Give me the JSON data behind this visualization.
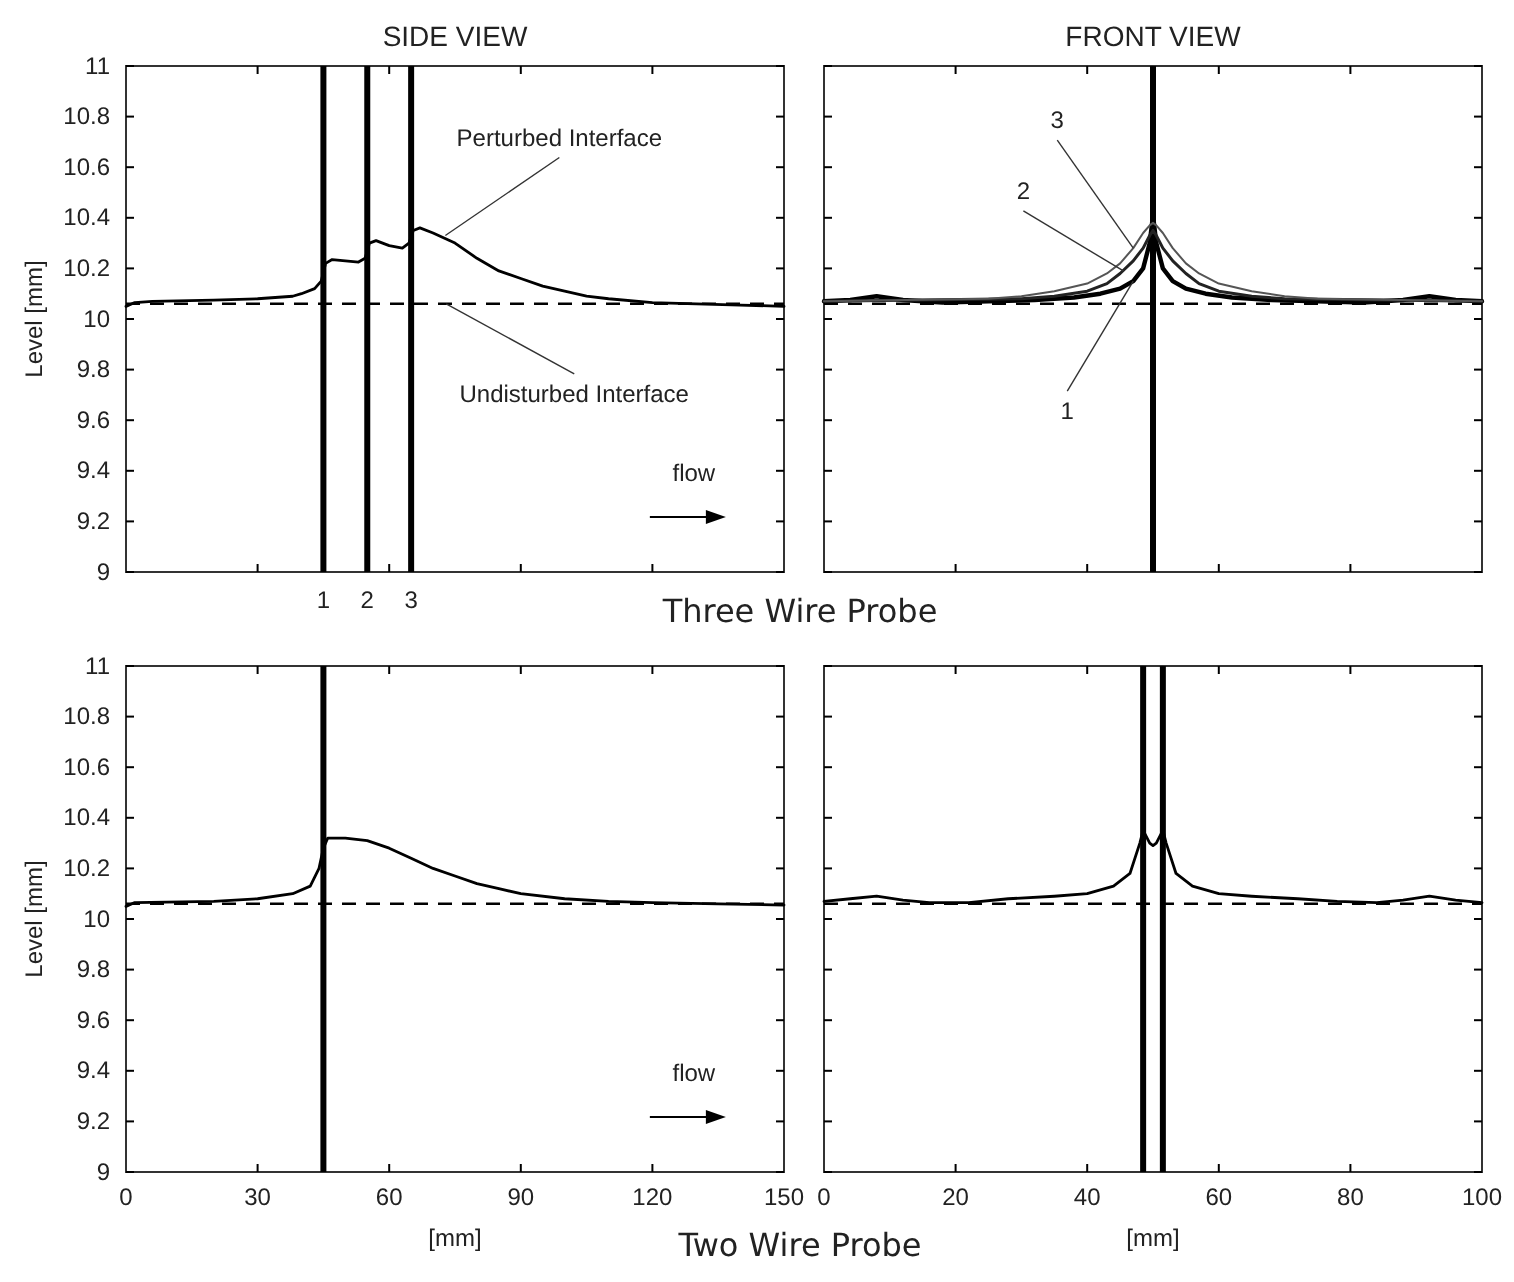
{
  "chart_data": [
    {
      "type": "line",
      "title": "SIDE VIEW",
      "ylabel": "Level [mm]",
      "xlim": [
        0,
        150
      ],
      "xticks": [
        0,
        30,
        60,
        90,
        120,
        150
      ],
      "ylim": [
        9,
        11
      ],
      "yticks": [
        9,
        9.2,
        9.4,
        9.6,
        9.8,
        10,
        10.2,
        10.4,
        10.6,
        10.8,
        11
      ],
      "tick_labels": "y",
      "series": [
        {
          "color": "#000000",
          "x": [
            0,
            2,
            6,
            20,
            30,
            38,
            40,
            43,
            44.5,
            45.5,
            47,
            50,
            53,
            54.5,
            55.5,
            57,
            60,
            63,
            64.5,
            65.5,
            67,
            70,
            75,
            80,
            85,
            90,
            95,
            100,
            105,
            110,
            120,
            130,
            140,
            150
          ],
          "values": [
            10.05,
            10.065,
            10.07,
            10.075,
            10.08,
            10.09,
            10.1,
            10.12,
            10.15,
            10.22,
            10.235,
            10.23,
            10.225,
            10.24,
            10.3,
            10.31,
            10.29,
            10.28,
            10.3,
            10.35,
            10.36,
            10.34,
            10.3,
            10.24,
            10.19,
            10.16,
            10.13,
            10.11,
            10.09,
            10.08,
            10.065,
            10.06,
            10.055,
            10.05
          ]
        }
      ],
      "ref_lines": [
        {
          "axis": "y",
          "value": 10.06,
          "color": "#000000",
          "line_style": "dashed"
        },
        {
          "axis": "x",
          "value": 45,
          "color": "#000000",
          "line_style": "solid"
        },
        {
          "axis": "x",
          "value": 55,
          "color": "#000000",
          "line_style": "solid"
        },
        {
          "axis": "x",
          "value": 65,
          "color": "#000000",
          "line_style": "solid"
        }
      ],
      "annotations": [
        {
          "text": "Perturbed Interface",
          "x": 72.8,
          "y": 10.33
        },
        {
          "text": "Undisturbed Interface",
          "x": 73,
          "y": 10.06
        },
        "flow",
        "Three Wire Probe",
        "1",
        "2",
        "3"
      ]
    },
    {
      "type": "line",
      "title": "FRONT VIEW",
      "xlim": [
        0,
        100
      ],
      "xticks": [
        0,
        20,
        40,
        60,
        80,
        100
      ],
      "ylim": [
        9,
        11
      ],
      "yticks": [
        9,
        9.2,
        9.4,
        9.6,
        9.8,
        10,
        10.2,
        10.4,
        10.6,
        10.8,
        11
      ],
      "tick_labels": false,
      "series": [
        {
          "color": "#000000",
          "x": [
            0,
            4,
            8,
            12,
            18,
            25,
            32,
            38,
            42,
            45,
            47,
            48.5,
            49.5,
            50,
            50.5,
            51.5,
            53,
            55,
            58,
            62,
            68,
            75,
            82,
            88,
            92,
            96,
            100
          ],
          "values": [
            10.07,
            10.075,
            10.09,
            10.075,
            10.065,
            10.07,
            10.075,
            10.085,
            10.1,
            10.12,
            10.15,
            10.2,
            10.3,
            10.41,
            10.3,
            10.2,
            10.15,
            10.12,
            10.1,
            10.085,
            10.075,
            10.07,
            10.065,
            10.075,
            10.09,
            10.075,
            10.07
          ]
        },
        {
          "color": "#222222",
          "x": [
            0,
            30,
            35,
            40,
            43,
            45,
            47,
            48.5,
            49.5,
            50,
            50.5,
            51.5,
            53,
            55,
            57,
            60,
            65,
            70,
            100
          ],
          "values": [
            10.07,
            10.08,
            10.09,
            10.11,
            10.14,
            10.18,
            10.23,
            10.28,
            10.33,
            10.35,
            10.33,
            10.28,
            10.23,
            10.18,
            10.14,
            10.11,
            10.09,
            10.08,
            10.07
          ]
        },
        {
          "color": "#555555",
          "x": [
            0,
            25,
            30,
            35,
            40,
            43,
            45,
            47,
            48.5,
            49.5,
            50,
            50.5,
            51.5,
            53,
            55,
            57,
            60,
            65,
            70,
            75,
            100
          ],
          "values": [
            10.07,
            10.08,
            10.09,
            10.11,
            10.14,
            10.18,
            10.22,
            10.28,
            10.34,
            10.37,
            10.38,
            10.37,
            10.34,
            10.28,
            10.22,
            10.18,
            10.14,
            10.11,
            10.09,
            10.08,
            10.07
          ]
        }
      ],
      "ref_lines": [
        {
          "axis": "y",
          "value": 10.06,
          "color": "#000000",
          "line_style": "dashed"
        },
        {
          "axis": "x",
          "value": 50,
          "color": "#000000",
          "line_style": "solid"
        }
      ],
      "annotations": [
        {
          "text": "3",
          "x": 47,
          "y": 10.28
        },
        {
          "text": "2",
          "x": 45.5,
          "y": 10.19
        },
        {
          "text": "1",
          "x": 47,
          "y": 10.15
        }
      ]
    },
    {
      "type": "line",
      "ylabel": "Level [mm]",
      "xlabel": "[mm]",
      "xlim": [
        0,
        150
      ],
      "xticks": [
        0,
        30,
        60,
        90,
        120,
        150
      ],
      "ylim": [
        9,
        11
      ],
      "yticks": [
        9,
        9.2,
        9.4,
        9.6,
        9.8,
        10,
        10.2,
        10.4,
        10.6,
        10.8,
        11
      ],
      "series": [
        {
          "color": "#000000",
          "x": [
            0,
            2,
            20,
            30,
            38,
            42,
            44,
            45,
            46,
            50,
            55,
            60,
            65,
            70,
            75,
            80,
            85,
            90,
            100,
            110,
            120,
            135,
            150
          ],
          "values": [
            10.05,
            10.065,
            10.07,
            10.08,
            10.1,
            10.13,
            10.2,
            10.28,
            10.32,
            10.32,
            10.31,
            10.28,
            10.24,
            10.2,
            10.17,
            10.14,
            10.12,
            10.1,
            10.08,
            10.07,
            10.065,
            10.06,
            10.055
          ]
        }
      ],
      "ref_lines": [
        {
          "axis": "y",
          "value": 10.06,
          "color": "#000000",
          "line_style": "dashed"
        },
        {
          "axis": "x",
          "value": 45,
          "color": "#000000",
          "line_style": "solid"
        }
      ],
      "annotations": [
        "flow",
        "Two Wire Probe"
      ]
    },
    {
      "type": "line",
      "xlabel": "[mm]",
      "xlim": [
        0,
        100
      ],
      "xticks": [
        0,
        20,
        40,
        60,
        80,
        100
      ],
      "ylim": [
        9,
        11
      ],
      "yticks": [
        9,
        9.2,
        9.4,
        9.6,
        9.8,
        10,
        10.2,
        10.4,
        10.6,
        10.8,
        11
      ],
      "tick_labels": "x",
      "series": [
        {
          "color": "#000000",
          "x": [
            0,
            4,
            8,
            12,
            16,
            22,
            28,
            35,
            40,
            44,
            46.5,
            48,
            48.5,
            49.5,
            50,
            50.5,
            51.5,
            52,
            53.5,
            56,
            60,
            65,
            72,
            78,
            84,
            88,
            92,
            96,
            100
          ],
          "values": [
            10.07,
            10.08,
            10.09,
            10.075,
            10.065,
            10.065,
            10.08,
            10.09,
            10.1,
            10.13,
            10.18,
            10.3,
            10.35,
            10.3,
            10.29,
            10.3,
            10.35,
            10.3,
            10.18,
            10.13,
            10.1,
            10.09,
            10.08,
            10.07,
            10.065,
            10.075,
            10.09,
            10.075,
            10.065
          ]
        }
      ],
      "ref_lines": [
        {
          "axis": "y",
          "value": 10.06,
          "color": "#000000",
          "line_style": "dashed"
        },
        {
          "axis": "x",
          "value": 48.5,
          "color": "#000000",
          "line_style": "solid"
        },
        {
          "axis": "x",
          "value": 51.5,
          "color": "#000000",
          "line_style": "solid"
        }
      ]
    }
  ]
}
